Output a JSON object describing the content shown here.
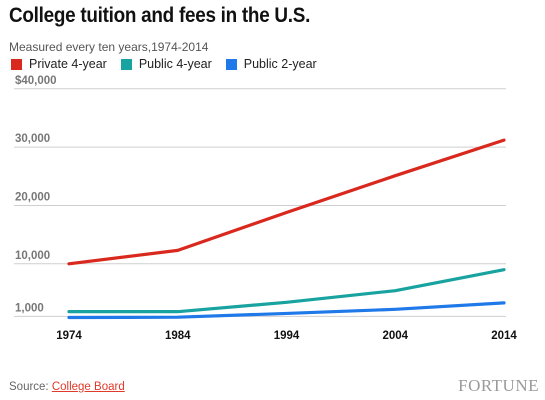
{
  "header": {
    "title": "College tuition and fees in the U.S.",
    "subtitle": "Measured every ten years,1974-2014"
  },
  "legend": [
    {
      "label": "Private 4-year",
      "color": "#d9281d"
    },
    {
      "label": "Public 4-year",
      "color": "#18a3a0"
    },
    {
      "label": "Public 2-year",
      "color": "#1f79e8"
    }
  ],
  "chart_data": {
    "type": "line",
    "x": [
      1974,
      1984,
      1994,
      2004,
      2014
    ],
    "x_tick_labels": [
      "1974",
      "1984",
      "1994",
      "2004",
      "2014"
    ],
    "y_tick_values": [
      1000,
      10000,
      20000,
      30000,
      40000
    ],
    "y_tick_labels": [
      "1,000",
      "10,000",
      "20,000",
      "30,000",
      "$40,000"
    ],
    "ylim": [
      -1000,
      41500
    ],
    "grid": true,
    "legend_position": "top-left",
    "series": [
      {
        "name": "Private 4-year",
        "color": "#d9281d",
        "values": [
          10000,
          12300,
          18800,
          25100,
          31200
        ]
      },
      {
        "name": "Public 4-year",
        "color": "#18a3a0",
        "values": [
          1800,
          1800,
          3400,
          5400,
          9000
        ]
      },
      {
        "name": "Public 2-year",
        "color": "#1f79e8",
        "values": [
          800,
          850,
          1500,
          2200,
          3300
        ]
      }
    ]
  },
  "footer": {
    "source_label": "Source: ",
    "source_link": "College Board",
    "logo": "FORTUNE"
  }
}
